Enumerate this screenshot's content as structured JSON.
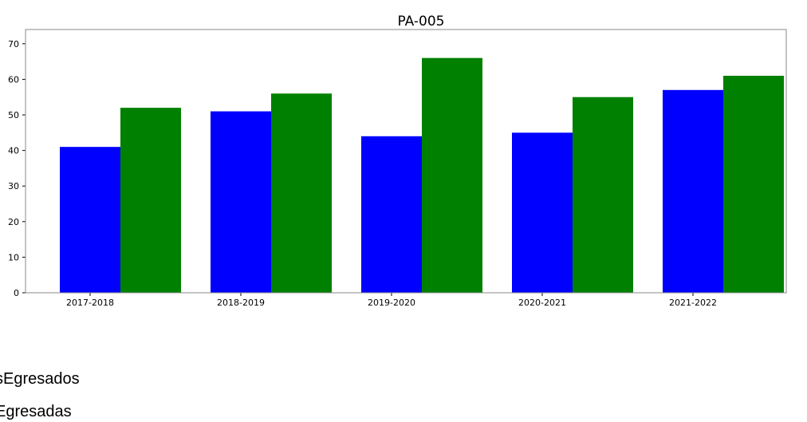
{
  "chart_data": {
    "type": "bar",
    "title": "PA-005",
    "xlabel": "",
    "ylabel": "",
    "categories": [
      "2017-2018",
      "2018-2019",
      "2019-2020",
      "2020-2021",
      "2021-2022"
    ],
    "series": [
      {
        "name": "AlumnosEgresados",
        "color": "#0000ff",
        "values": [
          41,
          51,
          44,
          45,
          57
        ]
      },
      {
        "name": "AlumnasEgresadas",
        "color": "#008000",
        "values": [
          52,
          56,
          66,
          55,
          61
        ]
      }
    ],
    "ylim": [
      0,
      74
    ],
    "yticks": [
      0,
      10,
      20,
      30,
      40,
      50,
      60,
      70
    ],
    "grid": false,
    "legend_placement": "below"
  },
  "legend": {
    "entries": [
      {
        "visible_text": "sEgresados"
      },
      {
        "visible_text": "Egresadas"
      }
    ]
  }
}
